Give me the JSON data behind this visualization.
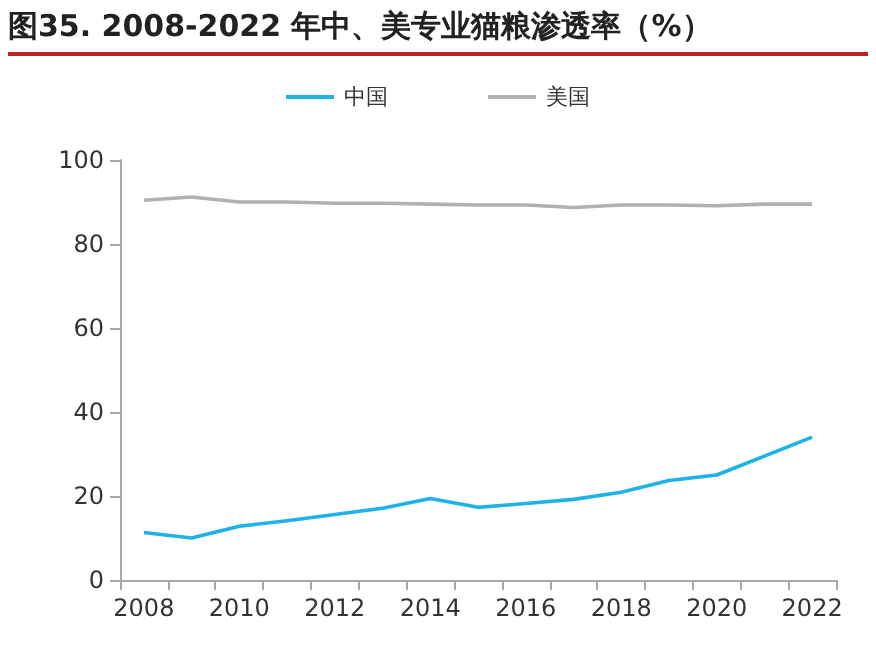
{
  "chart_data": {
    "type": "line",
    "title": "图35. 2008-2022 年中、美专业猫粮渗透率（%）",
    "categories": [
      "2008",
      null,
      "2010",
      null,
      "2012",
      null,
      "2014",
      null,
      "2016",
      null,
      "2018",
      null,
      "2020",
      null,
      "2022"
    ],
    "series": [
      {
        "name": "中国",
        "color": "#1fb2e6",
        "values": [
          11.3,
          10,
          12.8,
          14.1,
          15.6,
          17.1,
          19.4,
          17.3,
          18.2,
          19.2,
          20.9,
          23.7,
          25,
          29.5,
          34
        ]
      },
      {
        "name": "美国",
        "color": "#b4b0b0",
        "values": [
          90.4,
          91.2,
          90,
          90,
          89.7,
          89.7,
          89.5,
          89.3,
          89.3,
          88.7,
          89.3,
          89.3,
          89.1,
          89.5,
          89.5
        ]
      }
    ],
    "ylim": [
      0,
      100
    ],
    "yticks": [
      0,
      20,
      40,
      60,
      80,
      100
    ],
    "grid": false,
    "legend": "top",
    "marker": "none",
    "line_style": "solid"
  }
}
